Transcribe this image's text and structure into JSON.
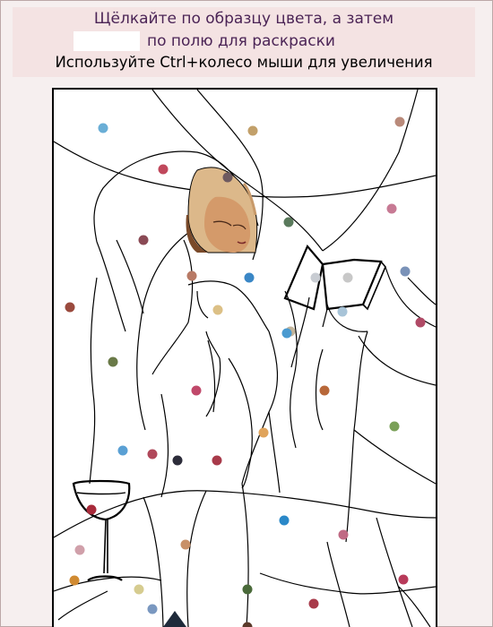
{
  "instructions": {
    "line1": "Щёлкайте по образцу цвета, а затем",
    "line2": "по полю для раскраски",
    "line3": "Используйте Ctrl+колесо мыши для увеличения"
  },
  "selected_color": "#ffffff",
  "colors": {
    "header_bg": "#f4e3e3",
    "instruction_text": "#4b2456",
    "page_bg": "#f6efef"
  },
  "palette_dots": [
    {
      "id": "d1",
      "color": "#6aaed6"
    },
    {
      "id": "d2",
      "color": "#c2a06a"
    },
    {
      "id": "d3",
      "color": "#b98a7a"
    },
    {
      "id": "d4",
      "color": "#c0485c"
    },
    {
      "id": "d5",
      "color": "#6e5a60"
    },
    {
      "id": "d6",
      "color": "#5a7a5c"
    },
    {
      "id": "d7",
      "color": "#c77a94"
    },
    {
      "id": "d8",
      "color": "#8a4a55"
    },
    {
      "id": "d9",
      "color": "#b87a66"
    },
    {
      "id": "d10",
      "color": "#3a87c6"
    },
    {
      "id": "d11",
      "color": "#c8ccd2"
    },
    {
      "id": "d12",
      "color": "#c8c8c8"
    },
    {
      "id": "d13",
      "color": "#7a92b8"
    },
    {
      "id": "d14",
      "color": "#9a4a3e"
    },
    {
      "id": "d15",
      "color": "#dcc086"
    },
    {
      "id": "d16",
      "color": "#c2b49a"
    },
    {
      "id": "d17",
      "color": "#a8c4d8"
    },
    {
      "id": "d18",
      "color": "#b04a66"
    },
    {
      "id": "d19",
      "color": "#4a9ad0"
    },
    {
      "id": "d20",
      "color": "#6a7a48"
    },
    {
      "id": "d21",
      "color": "#c0486a"
    },
    {
      "id": "d22",
      "color": "#b8683a"
    },
    {
      "id": "d23",
      "color": "#7aa058"
    },
    {
      "id": "d24",
      "color": "#e0a45c"
    },
    {
      "id": "d25",
      "color": "#5aa0d4"
    },
    {
      "id": "d26",
      "color": "#b0485a"
    },
    {
      "id": "d27",
      "color": "#2c2c3a"
    },
    {
      "id": "d28",
      "color": "#a83a4a"
    },
    {
      "id": "d29",
      "color": "#a82a3a"
    },
    {
      "id": "d30",
      "color": "#2a88c8"
    },
    {
      "id": "d31",
      "color": "#c06a84"
    },
    {
      "id": "d32",
      "color": "#d0a0aa"
    },
    {
      "id": "d33",
      "color": "#c89068"
    },
    {
      "id": "d34",
      "color": "#d08a32"
    },
    {
      "id": "d35",
      "color": "#d6cc90"
    },
    {
      "id": "d36",
      "color": "#4a6a3a"
    },
    {
      "id": "d37",
      "color": "#a83a4a"
    },
    {
      "id": "d38",
      "color": "#b83a5a"
    },
    {
      "id": "d39",
      "color": "#5a3a2a"
    },
    {
      "id": "d40",
      "color": "#7a98c0"
    }
  ]
}
